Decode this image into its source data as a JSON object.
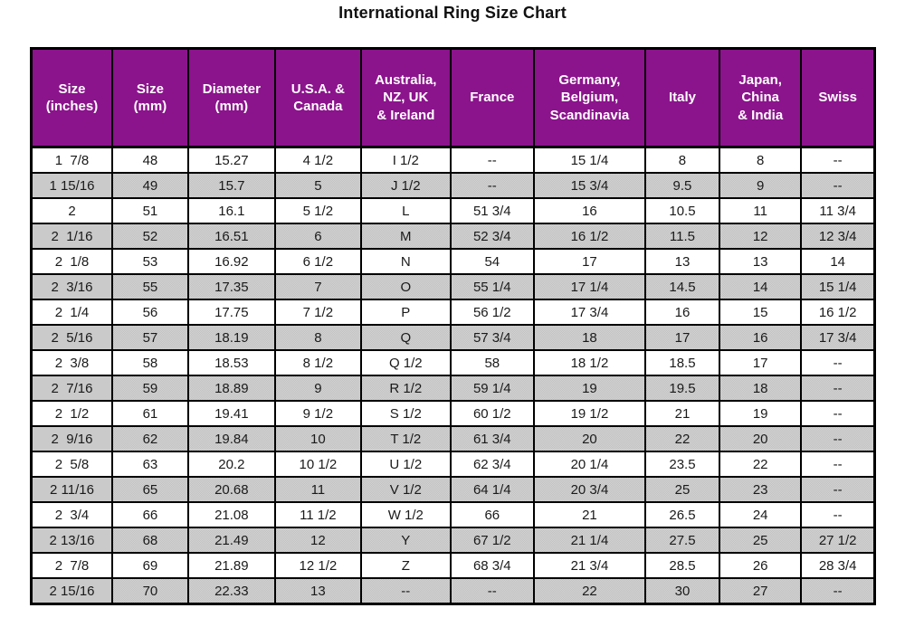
{
  "title": "International Ring Size Chart",
  "colors": {
    "header_bg": "#8b148c",
    "header_text": "#ffffff",
    "row_bg": "#ffffff",
    "row_alt_bg": "#cfcfcf",
    "border": "#000000",
    "title_text": "#111111"
  },
  "table": {
    "header_labels": [
      "Size\n(inches)",
      "Size\n(mm)",
      "Diameter\n(mm)",
      "U.S.A. &\nCanada",
      "Australia,\nNZ, UK\n& Ireland",
      "France",
      "Germany,\nBelgium,\nScandinavia",
      "Italy",
      "Japan,\nChina\n& India",
      "Swiss"
    ]
  },
  "chart_data": {
    "type": "table",
    "title": "International Ring Size Chart",
    "columns": [
      "Size (inches)",
      "Size (mm)",
      "Diameter (mm)",
      "U.S.A. & Canada",
      "Australia, NZ, UK & Ireland",
      "France",
      "Germany, Belgium, Scandinavia",
      "Italy",
      "Japan, China & India",
      "Swiss"
    ],
    "rows": [
      [
        "1  7/8",
        "48",
        "15.27",
        "4 1/2",
        "I 1/2",
        "--",
        "15 1/4",
        "8",
        "8",
        "--"
      ],
      [
        "1 15/16",
        "49",
        "15.7",
        "5",
        "J 1/2",
        "--",
        "15 3/4",
        "9.5",
        "9",
        "--"
      ],
      [
        "2",
        "51",
        "16.1",
        "5 1/2",
        "L",
        "51 3/4",
        "16",
        "10.5",
        "11",
        "11 3/4"
      ],
      [
        "2  1/16",
        "52",
        "16.51",
        "6",
        "M",
        "52 3/4",
        "16 1/2",
        "11.5",
        "12",
        "12 3/4"
      ],
      [
        "2  1/8",
        "53",
        "16.92",
        "6 1/2",
        "N",
        "54",
        "17",
        "13",
        "13",
        "14"
      ],
      [
        "2  3/16",
        "55",
        "17.35",
        "7",
        "O",
        "55 1/4",
        "17 1/4",
        "14.5",
        "14",
        "15 1/4"
      ],
      [
        "2  1/4",
        "56",
        "17.75",
        "7 1/2",
        "P",
        "56 1/2",
        "17 3/4",
        "16",
        "15",
        "16 1/2"
      ],
      [
        "2  5/16",
        "57",
        "18.19",
        "8",
        "Q",
        "57 3/4",
        "18",
        "17",
        "16",
        "17 3/4"
      ],
      [
        "2  3/8",
        "58",
        "18.53",
        "8 1/2",
        "Q 1/2",
        "58",
        "18 1/2",
        "18.5",
        "17",
        "--"
      ],
      [
        "2  7/16",
        "59",
        "18.89",
        "9",
        "R 1/2",
        "59 1/4",
        "19",
        "19.5",
        "18",
        "--"
      ],
      [
        "2  1/2",
        "61",
        "19.41",
        "9 1/2",
        "S 1/2",
        "60 1/2",
        "19 1/2",
        "21",
        "19",
        "--"
      ],
      [
        "2  9/16",
        "62",
        "19.84",
        "10",
        "T 1/2",
        "61 3/4",
        "20",
        "22",
        "20",
        "--"
      ],
      [
        "2  5/8",
        "63",
        "20.2",
        "10 1/2",
        "U 1/2",
        "62 3/4",
        "20 1/4",
        "23.5",
        "22",
        "--"
      ],
      [
        "2 11/16",
        "65",
        "20.68",
        "11",
        "V 1/2",
        "64 1/4",
        "20 3/4",
        "25",
        "23",
        "--"
      ],
      [
        "2  3/4",
        "66",
        "21.08",
        "11 1/2",
        "W 1/2",
        "66",
        "21",
        "26.5",
        "24",
        "--"
      ],
      [
        "2 13/16",
        "68",
        "21.49",
        "12",
        "Y",
        "67 1/2",
        "21 1/4",
        "27.5",
        "25",
        "27 1/2"
      ],
      [
        "2  7/8",
        "69",
        "21.89",
        "12 1/2",
        "Z",
        "68 3/4",
        "21 3/4",
        "28.5",
        "26",
        "28 3/4"
      ],
      [
        "2 15/16",
        "70",
        "22.33",
        "13",
        "--",
        "--",
        "22",
        "30",
        "27",
        "--"
      ]
    ]
  }
}
